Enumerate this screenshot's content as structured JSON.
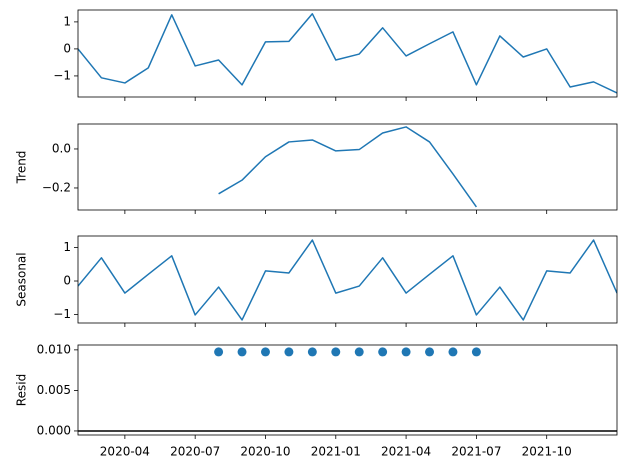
{
  "chart_data": [
    {
      "type": "line",
      "color": "#1f77b4",
      "x": [
        "2020-02",
        "2020-03",
        "2020-04",
        "2020-05",
        "2020-06",
        "2020-07",
        "2020-08",
        "2020-09",
        "2020-10",
        "2020-11",
        "2020-12",
        "2021-01",
        "2021-02",
        "2021-03",
        "2021-04",
        "2021-05",
        "2021-06",
        "2021-07",
        "2021-08",
        "2021-09",
        "2021-10",
        "2021-11",
        "2021-12",
        "2022-01"
      ],
      "values": [
        0.0,
        -1.07,
        -1.26,
        -0.7,
        1.26,
        -0.63,
        -0.41,
        -1.33,
        0.26,
        0.28,
        1.3,
        -0.41,
        -0.19,
        0.78,
        -0.26,
        0.19,
        0.63,
        -1.33,
        0.48,
        -0.3,
        0.0,
        -1.41,
        -1.22,
        -1.63
      ],
      "xlim": [
        "2020-02",
        "2022-01"
      ],
      "xticks": [
        "2020-04",
        "2020-07",
        "2020-10",
        "2021-01",
        "2021-04",
        "2021-07",
        "2021-10"
      ],
      "ylim": [
        -1.78,
        1.44
      ],
      "yticks": [
        {
          "value": -1,
          "label": "−1"
        },
        0,
        1
      ]
    },
    {
      "type": "line",
      "color": "#1f77b4",
      "ylabel": "Trend",
      "x": [
        "2020-02",
        "2020-03",
        "2020-04",
        "2020-05",
        "2020-06",
        "2020-07",
        "2020-08",
        "2020-09",
        "2020-10",
        "2020-11",
        "2020-12",
        "2021-01",
        "2021-02",
        "2021-03",
        "2021-04",
        "2021-05",
        "2021-06",
        "2021-07",
        "2021-08",
        "2021-09",
        "2021-10",
        "2021-11",
        "2021-12",
        "2022-01"
      ],
      "values": [
        null,
        null,
        null,
        null,
        null,
        null,
        -0.23,
        -0.16,
        -0.04,
        0.036,
        0.046,
        -0.01,
        -0.003,
        0.082,
        0.113,
        0.036,
        -0.128,
        -0.297,
        null,
        null,
        null,
        null,
        null,
        null
      ],
      "xlim": [
        "2020-02",
        "2022-01"
      ],
      "xticks": [
        "2020-04",
        "2020-07",
        "2020-10",
        "2021-01",
        "2021-04",
        "2021-07",
        "2021-10"
      ],
      "ylim": [
        -0.313,
        0.128
      ],
      "yticks": [
        {
          "value": -0.2,
          "label": "−0.2"
        },
        {
          "value": 0,
          "label": "0.0"
        }
      ]
    },
    {
      "type": "line",
      "color": "#1f77b4",
      "ylabel": "Seasonal",
      "x": [
        "2020-02",
        "2020-03",
        "2020-04",
        "2020-05",
        "2020-06",
        "2020-07",
        "2020-08",
        "2020-09",
        "2020-10",
        "2020-11",
        "2020-12",
        "2021-01",
        "2021-02",
        "2021-03",
        "2021-04",
        "2021-05",
        "2021-06",
        "2021-07",
        "2021-08",
        "2021-09",
        "2021-10",
        "2021-11",
        "2021-12",
        "2022-01"
      ],
      "values": [
        -0.15,
        0.69,
        -0.36,
        0.2,
        0.75,
        -1.01,
        -0.18,
        -1.16,
        0.3,
        0.24,
        1.22,
        -0.36,
        -0.15,
        0.69,
        -0.36,
        0.2,
        0.75,
        -1.01,
        -0.18,
        -1.16,
        0.3,
        0.24,
        1.22,
        -0.36
      ],
      "xlim": [
        "2020-02",
        "2022-01"
      ],
      "xticks": [
        "2020-04",
        "2020-07",
        "2020-10",
        "2021-01",
        "2021-04",
        "2021-07",
        "2021-10"
      ],
      "ylim": [
        -1.25,
        1.34
      ],
      "yticks": [
        {
          "value": -1,
          "label": "−1"
        },
        0,
        1
      ]
    },
    {
      "type": "scatter",
      "color": "#1f77b4",
      "ylabel": "Resid",
      "hline": 0,
      "x": [
        "2020-02",
        "2020-03",
        "2020-04",
        "2020-05",
        "2020-06",
        "2020-07",
        "2020-08",
        "2020-09",
        "2020-10",
        "2020-11",
        "2020-12",
        "2021-01",
        "2021-02",
        "2021-03",
        "2021-04",
        "2021-05",
        "2021-06",
        "2021-07",
        "2021-08",
        "2021-09",
        "2021-10",
        "2021-11",
        "2021-12",
        "2022-01"
      ],
      "values": [
        null,
        null,
        null,
        null,
        null,
        null,
        0.00975,
        0.00975,
        0.00975,
        0.00975,
        0.00975,
        0.00975,
        0.00975,
        0.00975,
        0.00975,
        0.00975,
        0.00975,
        0.00975,
        null,
        null,
        null,
        null,
        null,
        null
      ],
      "xlim": [
        "2020-02",
        "2022-01"
      ],
      "xticks": [
        "2020-04",
        "2020-07",
        "2020-10",
        "2021-01",
        "2021-04",
        "2021-07",
        "2021-10"
      ],
      "ylim": [
        -0.0005,
        0.0106
      ],
      "yticks": [
        {
          "value": 0,
          "label": "0.000"
        },
        {
          "value": 0.005,
          "label": "0.005"
        },
        {
          "value": 0.01,
          "label": "0.010"
        }
      ]
    }
  ]
}
